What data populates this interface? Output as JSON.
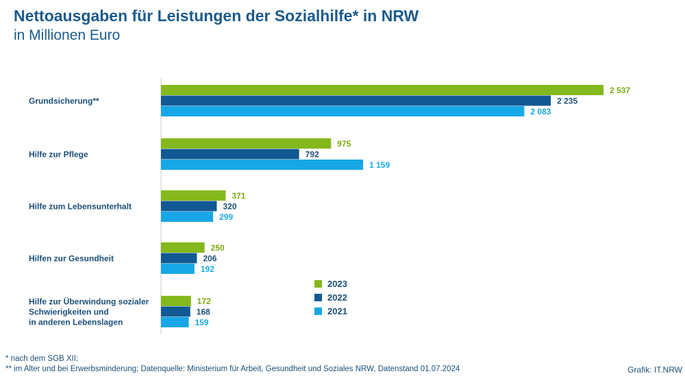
{
  "title": "Nettoausgaben für Leistungen der Sozialhilfe* in NRW",
  "subtitle": "in Millionen Euro",
  "chart_data": {
    "type": "bar",
    "orientation": "horizontal",
    "title": "Nettoausgaben für Leistungen der Sozialhilfe* in NRW",
    "subtitle": "in Millionen Euro",
    "categories": [
      [
        "Grundsicherung**"
      ],
      [
        "Hilfe zur Pflege"
      ],
      [
        "Hilfe zum Lebensunterhalt"
      ],
      [
        "Hilfen zur Gesundheit"
      ],
      [
        "Hilfe zur Überwindung sozialer",
        "Schwierigkeiten und",
        "in anderen Lebenslagen"
      ]
    ],
    "series": [
      {
        "name": "2023",
        "color": "#85b81c",
        "values": [
          2537,
          975,
          371,
          250,
          172
        ],
        "labels": [
          "2 537",
          "975",
          "371",
          "250",
          "172"
        ]
      },
      {
        "name": "2022",
        "color": "#115993",
        "values": [
          2235,
          792,
          320,
          206,
          168
        ],
        "labels": [
          "2 235",
          "792",
          "320",
          "206",
          "168"
        ]
      },
      {
        "name": "2021",
        "color": "#18a7e6",
        "values": [
          2083,
          1159,
          299,
          192,
          159
        ],
        "labels": [
          "2 083",
          "1 159",
          "299",
          "192",
          "159"
        ]
      }
    ],
    "xlim": [
      0,
      2537
    ],
    "grid": false,
    "legend": "bottom-center"
  },
  "footnotes": [
    " * nach dem SGB XII;",
    "** im Alter und bei  Erwerbsminderung; Datenquelle: Ministerium für Arbeit, Gesundheit und Soziales NRW, Datenstand 01.07.2024"
  ],
  "credit": "Grafik: IT.NRW"
}
